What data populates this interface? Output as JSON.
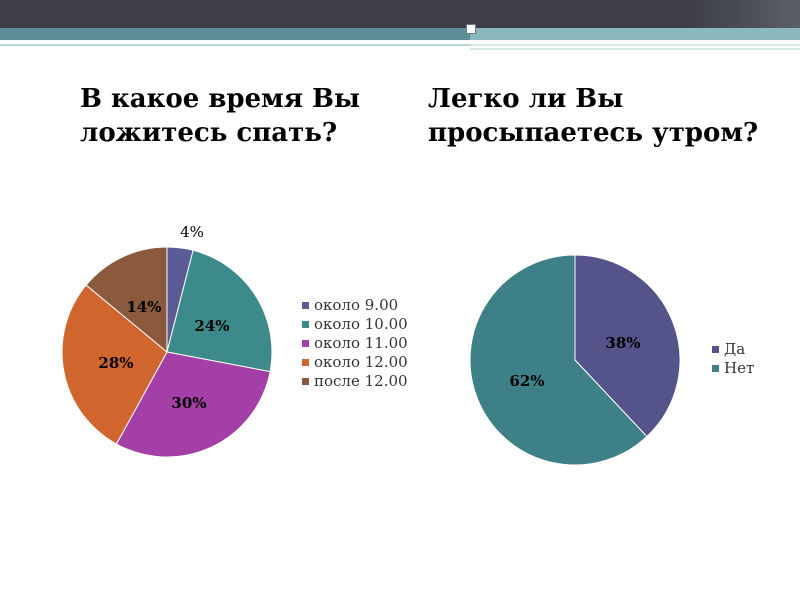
{
  "slide": {
    "left_title": "В какое время Вы ложитесь спать?",
    "right_title": "Легко ли Вы просыпаетесь утром?"
  },
  "chart_data": [
    {
      "type": "pie",
      "title": "",
      "categories": [
        "около 9.00",
        "около 10.00",
        "около 11.00",
        "около 12.00",
        "после 12.00"
      ],
      "values": [
        4,
        24,
        30,
        28,
        14
      ],
      "labels": [
        "4%",
        "24%",
        "30%",
        "28%",
        "14%"
      ],
      "colors": [
        "#5b5b96",
        "#3d8a8a",
        "#a33fa6",
        "#d0662e",
        "#8b5a3c"
      ],
      "legend_position": "right"
    },
    {
      "type": "pie",
      "title": "",
      "categories": [
        "Да",
        "Нет"
      ],
      "values": [
        38,
        62
      ],
      "labels": [
        "38%",
        "62%"
      ],
      "colors": [
        "#55548a",
        "#3e8087"
      ],
      "legend_position": "right"
    }
  ]
}
